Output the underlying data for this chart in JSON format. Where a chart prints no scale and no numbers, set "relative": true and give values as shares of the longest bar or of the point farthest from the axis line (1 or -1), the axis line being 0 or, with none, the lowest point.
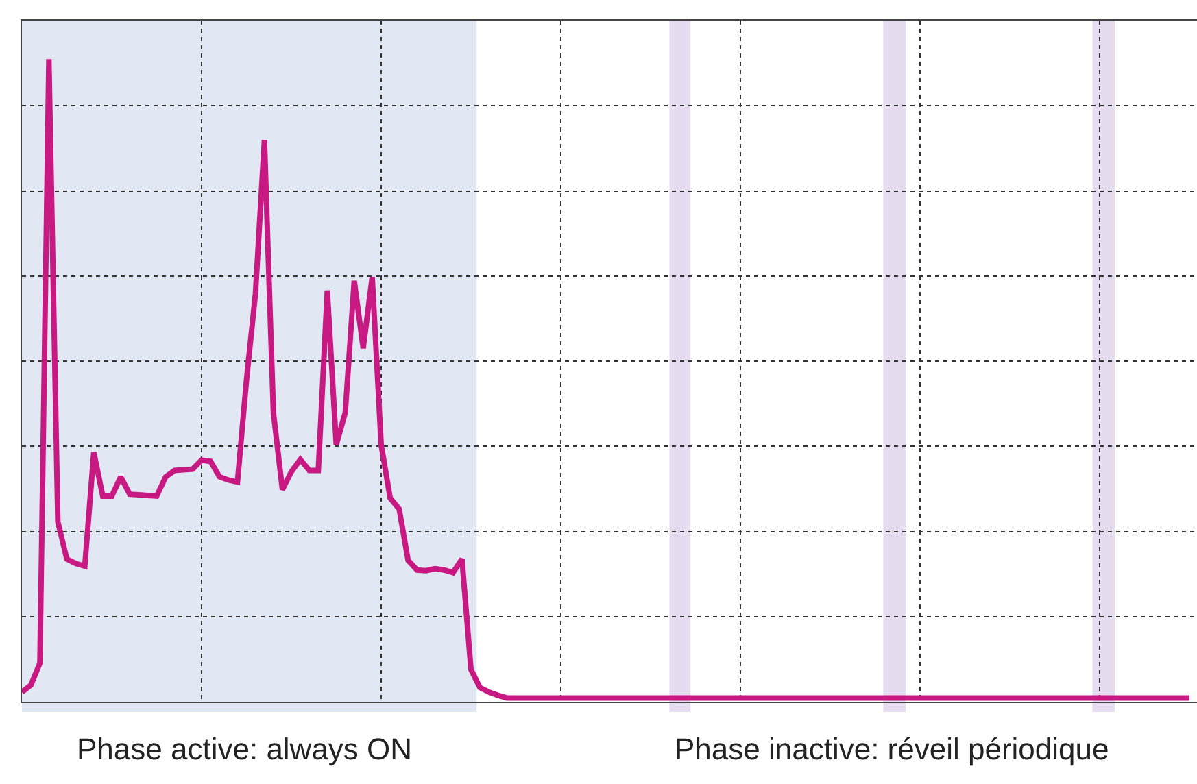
{
  "chart_data": {
    "type": "line",
    "relative": true,
    "grid": true,
    "categories": [
      null,
      null,
      null,
      null,
      null,
      null,
      null,
      null,
      null,
      null,
      null,
      null,
      null,
      null,
      null,
      null,
      null,
      null,
      null,
      null,
      null,
      null,
      null,
      null,
      null,
      null,
      null,
      null,
      null,
      null,
      null,
      null,
      null,
      null,
      null,
      null,
      null,
      null,
      null,
      null,
      null,
      null,
      null,
      null,
      null,
      null,
      null,
      null,
      null,
      null,
      null,
      null,
      null,
      null,
      null,
      null,
      null,
      null,
      null,
      null,
      null,
      null,
      null,
      null,
      null,
      null,
      null,
      null,
      null,
      null,
      null,
      null,
      null,
      null,
      null,
      null,
      null,
      null,
      null,
      null,
      null,
      null,
      null,
      null,
      null,
      null,
      null,
      null,
      null,
      null,
      null,
      null,
      null,
      null,
      null,
      null,
      null,
      null,
      null,
      null,
      null,
      null,
      null,
      null,
      null,
      null,
      null,
      null,
      null,
      null,
      null,
      null,
      null,
      null,
      null,
      null,
      null,
      null,
      null,
      null,
      null,
      null,
      null,
      null,
      null,
      null,
      null,
      null,
      null,
      null,
      null
    ],
    "series": [
      {
        "color": "#c81882",
        "values": [
          0.015,
          0.026,
          0.06,
          1.0,
          0.28,
          0.222,
          0.215,
          0.211,
          0.388,
          0.32,
          0.32,
          0.35,
          0.323,
          0.322,
          0.321,
          0.32,
          0.35,
          0.36,
          0.361,
          0.362,
          0.376,
          0.374,
          0.35,
          0.345,
          0.342,
          0.5,
          0.635,
          0.874,
          0.45,
          0.33,
          0.358,
          0.377,
          0.36,
          0.36,
          0.64,
          0.4,
          0.45,
          0.655,
          0.55,
          0.661,
          0.4,
          0.317,
          0.3,
          0.22,
          0.205,
          0.204,
          0.207,
          0.205,
          0.201,
          0.222,
          0.05,
          0.022,
          0.015,
          0.01,
          0.006,
          0.006,
          0.006,
          0.006,
          0.006,
          0.006,
          0.006,
          0.006,
          0.006,
          0.006,
          0.006,
          0.006,
          0.006,
          0.006,
          0.006,
          0.006,
          0.006,
          0.006,
          0.006,
          0.006,
          0.006,
          0.006,
          0.006,
          0.006,
          0.006,
          0.006,
          0.006,
          0.006,
          0.006,
          0.006,
          0.006,
          0.006,
          0.006,
          0.006,
          0.006,
          0.006,
          0.006,
          0.006,
          0.006,
          0.006,
          0.006,
          0.006,
          0.006,
          0.006,
          0.006,
          0.006,
          0.006,
          0.006,
          0.006,
          0.006,
          0.006,
          0.006,
          0.006,
          0.006,
          0.006,
          0.006,
          0.006,
          0.006,
          0.006,
          0.006,
          0.006,
          0.006,
          0.006,
          0.006,
          0.006,
          0.006,
          0.006,
          0.006,
          0.006,
          0.006,
          0.006,
          0.006,
          0.006,
          0.006,
          0.006,
          0.006,
          0.006
        ]
      }
    ],
    "annotations": [
      "Phase active: always ON",
      "Phase inactive: réveil périodique"
    ]
  }
}
